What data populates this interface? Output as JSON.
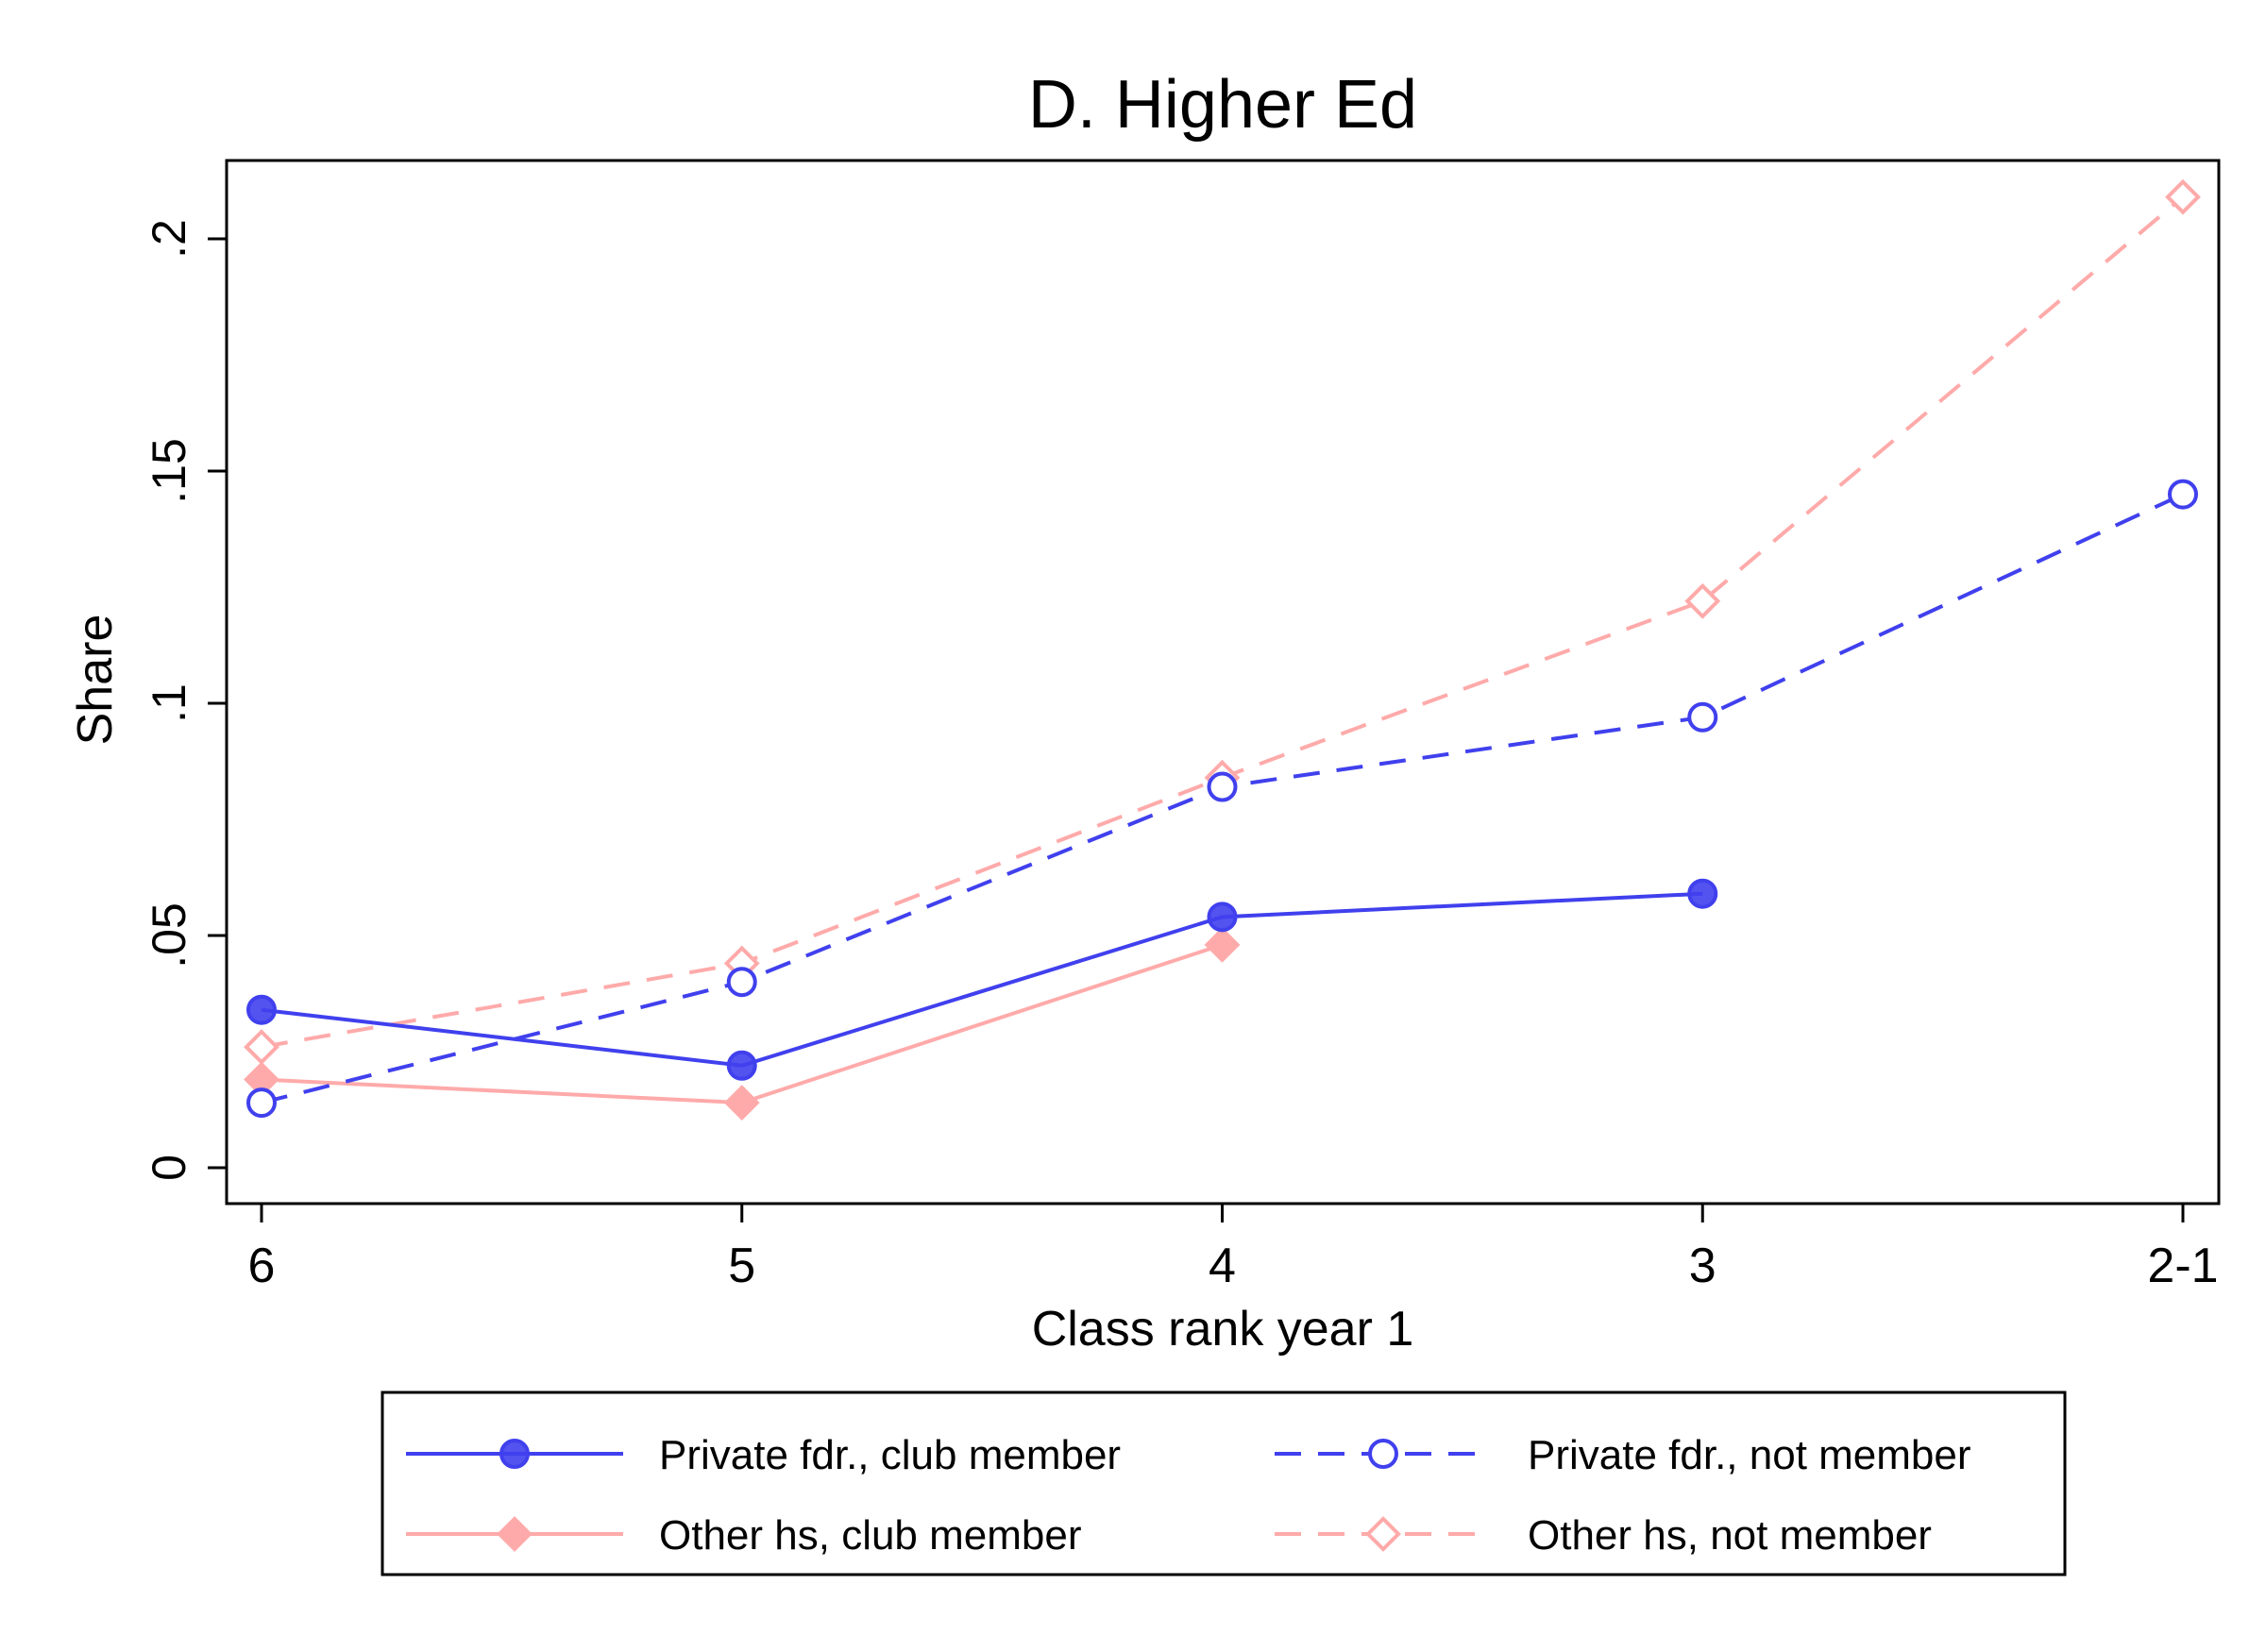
{
  "chart_data": {
    "type": "line",
    "title": "D. Higher Ed",
    "xlabel": "Class rank year 1",
    "ylabel": "Share",
    "categories": [
      "6",
      "5",
      "4",
      "3",
      "2-1"
    ],
    "ylim": [
      0,
      0.2
    ],
    "yticks": [
      {
        "value": 0,
        "label": "0"
      },
      {
        "value": 0.05,
        "label": ".05"
      },
      {
        "value": 0.1,
        "label": ".1"
      },
      {
        "value": 0.15,
        "label": ".15"
      },
      {
        "value": 0.2,
        "label": ".2"
      }
    ],
    "grid": false,
    "legend_position": "bottom",
    "series": [
      {
        "name": "Private fdr., club member",
        "values": [
          0.034,
          0.022,
          0.054,
          0.059,
          null
        ],
        "color": "#4040ee",
        "dash": "solid",
        "marker": "circle-filled"
      },
      {
        "name": "Private fdr., not member",
        "values": [
          0.014,
          0.04,
          0.082,
          0.097,
          0.145
        ],
        "color": "#4040ee",
        "dash": "dashed",
        "marker": "circle-hollow"
      },
      {
        "name": "Other hs, club member",
        "values": [
          0.019,
          0.014,
          0.048,
          null,
          null
        ],
        "color": "#ffaaaa",
        "dash": "solid",
        "marker": "diamond-filled"
      },
      {
        "name": "Other hs, not member",
        "values": [
          0.026,
          0.044,
          0.084,
          0.122,
          0.209
        ],
        "color": "#ffaaaa",
        "dash": "dashed",
        "marker": "diamond-hollow"
      }
    ]
  }
}
